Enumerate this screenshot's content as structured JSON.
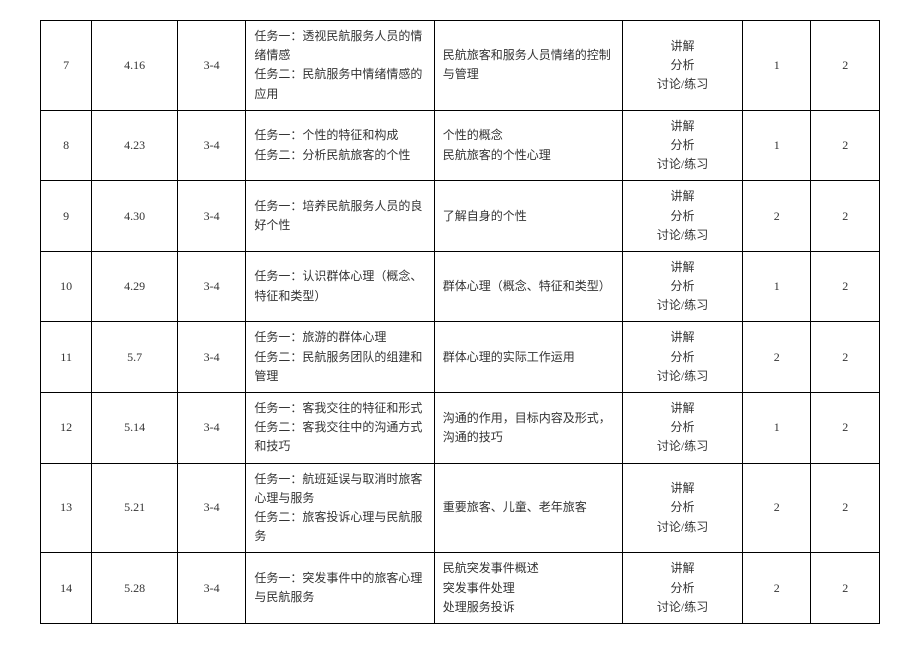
{
  "table": {
    "rows": [
      {
        "num": "7",
        "date": "4.16",
        "period": "3-4",
        "tasks": "任务一：透视民航服务人员的情绪情感\n任务二：民航服务中情绪情感的应用",
        "content": "民航旅客和服务人员情绪的控制与管理",
        "methods": "讲解\n分析\n讨论/练习",
        "v1": "1",
        "v2": "2"
      },
      {
        "num": "8",
        "date": "4.23",
        "period": "3-4",
        "tasks": "任务一：个性的特征和构成\n任务二：分析民航旅客的个性",
        "content": "个性的概念\n民航旅客的个性心理",
        "methods": "讲解\n分析\n讨论/练习",
        "v1": "1",
        "v2": "2"
      },
      {
        "num": "9",
        "date": "4.30",
        "period": "3-4",
        "tasks": "任务一：培养民航服务人员的良好个性",
        "content": "了解自身的个性",
        "methods": "讲解\n分析\n讨论/练习",
        "v1": "2",
        "v2": "2"
      },
      {
        "num": "10",
        "date": "4.29",
        "period": "3-4",
        "tasks": "任务一：认识群体心理（概念、特征和类型）",
        "content": "群体心理（概念、特征和类型）",
        "methods": "讲解\n分析\n讨论/练习",
        "v1": "1",
        "v2": "2"
      },
      {
        "num": "11",
        "date": "5.7",
        "period": "3-4",
        "tasks": "任务一：旅游的群体心理\n任务二：民航服务团队的组建和管理",
        "content": "群体心理的实际工作运用",
        "methods": "讲解\n分析\n讨论/练习",
        "v1": "2",
        "v2": "2"
      },
      {
        "num": "12",
        "date": "5.14",
        "period": "3-4",
        "tasks": "任务一：客我交往的特征和形式\n任务二：客我交往中的沟通方式和技巧",
        "content": "沟通的作用，目标内容及形式，沟通的技巧",
        "methods": "讲解\n分析\n讨论/练习",
        "v1": "1",
        "v2": "2"
      },
      {
        "num": "13",
        "date": "5.21",
        "period": "3-4",
        "tasks": "任务一：航班延误与取消时旅客心理与服务\n任务二：旅客投诉心理与民航服务",
        "content": "重要旅客、儿童、老年旅客",
        "methods": "讲解\n分析\n讨论/练习",
        "v1": "2",
        "v2": "2"
      },
      {
        "num": "14",
        "date": "5.28",
        "period": "3-4",
        "tasks": "任务一：突发事件中的旅客心理与民航服务",
        "content": "民航突发事件概述\n突发事件处理\n处理服务投诉",
        "methods": "讲解\n分析\n讨论/练习",
        "v1": "2",
        "v2": "2"
      }
    ]
  }
}
